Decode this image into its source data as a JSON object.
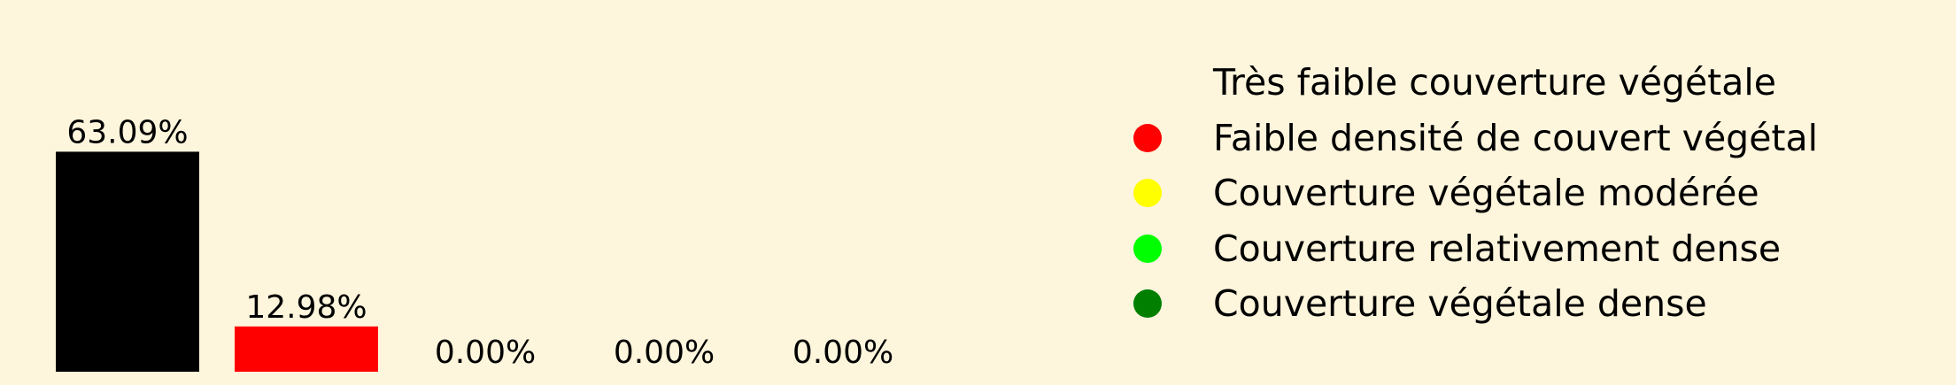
{
  "chart_data": {
    "type": "bar",
    "categories": [
      "Très faible couverture végétale",
      "Faible densité de couvert végétal",
      "Couverture végétale modérée",
      "Couverture relativement dense",
      "Couverture végétale dense"
    ],
    "values": [
      63.09,
      12.98,
      0.0,
      0.0,
      0.0
    ],
    "value_labels": [
      "63.09%",
      "12.98%",
      "0.00%",
      "0.00%",
      "0.00%"
    ],
    "colors": [
      "#000000",
      "#ff0000",
      "#ffff00",
      "#00ff00",
      "#007f00"
    ],
    "title": "",
    "xlabel": "",
    "ylabel": "",
    "ylim": [
      0,
      70
    ],
    "grid": false,
    "legend_position": "right"
  },
  "legend": {
    "items": [
      {
        "label": "Très faible couverture végétale",
        "color": "#000000"
      },
      {
        "label": "Faible densité de couvert végétal",
        "color": "#ff0000"
      },
      {
        "label": "Couverture végétale modérée",
        "color": "#ffff00"
      },
      {
        "label": "Couverture relativement dense",
        "color": "#00ff00"
      },
      {
        "label": "Couverture végétale dense",
        "color": "#007f00"
      }
    ]
  },
  "background_color": "#fdf5dc"
}
